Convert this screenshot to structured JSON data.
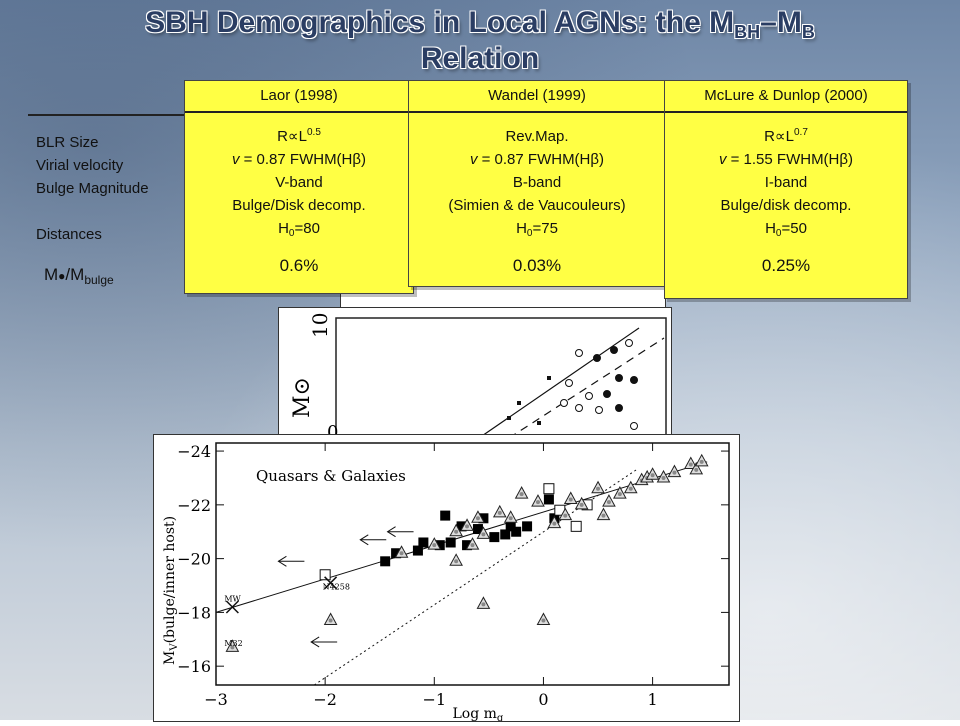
{
  "slide": {
    "title_line1_pre": "SBH Demographics in Local AGNs: the M",
    "title_sub1": "BH",
    "title_dash": "–M",
    "title_sub2": "B",
    "title_line2": "Relation"
  },
  "row_labels": {
    "blr_size": "BLR Size",
    "virial_velocity": "Virial velocity",
    "bulge_magnitude": "Bulge Magnitude",
    "distances": "Distances",
    "ratio_main": "M",
    "ratio_sub": "/M",
    "ratio_sub2": "bulge"
  },
  "columns": [
    {
      "head": "Laor (1998)",
      "blr_main": "R∝L",
      "blr_exp": "0.5",
      "vel_pre": "v",
      "vel_mid": " = 0.87 FWHM(H",
      "vel_beta": "β",
      "vel_post": ")",
      "band": "V-band",
      "note": "Bulge/Disk decomp.",
      "dist_a": "H",
      "dist_sub": "0",
      "dist_b": "=80",
      "pct": "0.6%"
    },
    {
      "head": "Wandel (1999)",
      "blr_main": "Rev.Map.",
      "blr_exp": "",
      "vel_pre": "v",
      "vel_mid": " = 0.87 FWHM(H",
      "vel_beta": "β",
      "vel_post": ")",
      "band": "B-band",
      "note": "(Simien & de Vaucouleurs)",
      "dist_a": "H",
      "dist_sub": "0",
      "dist_b": "=75",
      "pct": "0.03%"
    },
    {
      "head": "McLure & Dunlop (2000)",
      "blr_main": "R∝L",
      "blr_exp": "0.7",
      "vel_pre": "v",
      "vel_mid": " = 1.55 FWHM(H",
      "vel_beta": "β",
      "vel_post": ")",
      "band": "I-band",
      "note": "Bulge/disk decomp.",
      "dist_a": "H",
      "dist_sub": "0",
      "dist_b": "=50",
      "pct": "0.25%"
    }
  ],
  "back_plot": {
    "tick_10": "10",
    "ylabel_frag": "M",
    "ylabel_sun": "⊙",
    "tick_0": "0"
  },
  "chart_data": {
    "type": "scatter",
    "title": "Quasars & Galaxies",
    "xlabel": "Log m",
    "xlabel_sub": "g",
    "ylabel": "M",
    "ylabel_sub": "V",
    "ylabel_rest": "(bulge/inner host)",
    "xlim": [
      -3,
      1.7
    ],
    "ylim": [
      -15.3,
      -24.3
    ],
    "y_inverted": true,
    "x_ticks": [
      -3,
      -2,
      -1,
      0,
      1
    ],
    "x_tick_labels": [
      "−3",
      "−2",
      "−1",
      "0",
      "1"
    ],
    "y_ticks": [
      -24,
      -22,
      -20,
      -18,
      -16
    ],
    "y_tick_labels": [
      "−24",
      "−22",
      "−20",
      "−18",
      "−16"
    ],
    "annotations": [
      {
        "text": "MW",
        "x": -2.85,
        "y": -18.4
      },
      {
        "text": "N4258",
        "x": -1.95,
        "y": -18.85
      },
      {
        "text": "M32",
        "x": -2.85,
        "y": -16.75
      }
    ],
    "lines": [
      {
        "style": "solid",
        "x": [
          -3,
          1.5
        ],
        "y": [
          -18.0,
          -23.6
        ]
      },
      {
        "style": "dotted",
        "x": [
          -2.1,
          0.85
        ],
        "y": [
          -15.3,
          -23.3
        ]
      }
    ],
    "series": [
      {
        "marker": "filled-square",
        "x": [
          -1.35,
          -1.15,
          -1.1,
          -0.95,
          -0.9,
          -0.75,
          -0.7,
          -0.55,
          -0.45,
          -0.35,
          -0.3,
          -0.15,
          0.05,
          -0.85,
          -0.6,
          -1.45,
          -0.25,
          0.1
        ],
        "y": [
          -20.2,
          -20.3,
          -20.6,
          -20.5,
          -21.6,
          -21.2,
          -20.5,
          -21.5,
          -20.8,
          -20.9,
          -21.2,
          -21.2,
          -22.2,
          -20.6,
          -21.1,
          -19.9,
          -21.0,
          -21.5
        ]
      },
      {
        "marker": "open-square",
        "x": [
          -2.0,
          0.05,
          0.15,
          0.3,
          0.4
        ],
        "y": [
          -19.4,
          -22.6,
          -21.8,
          -21.2,
          -22.0
        ]
      },
      {
        "marker": "open-triangle",
        "x": [
          -2.85,
          -1.95,
          -1.3,
          -1.0,
          -0.8,
          -0.7,
          -0.6,
          -0.55,
          -0.4,
          -0.3,
          -0.2,
          -0.05,
          0.0,
          0.1,
          0.2,
          0.25,
          0.35,
          0.5,
          0.55,
          0.6,
          0.7,
          0.8,
          0.9,
          0.95,
          1.0,
          1.1,
          1.2,
          1.35,
          1.4,
          1.45,
          -0.55,
          -0.8,
          -0.65
        ],
        "y": [
          -16.7,
          -17.7,
          -20.2,
          -20.5,
          -19.9,
          -21.2,
          -21.5,
          -18.3,
          -21.7,
          -21.5,
          -22.4,
          -22.1,
          -17.7,
          -21.3,
          -21.6,
          -22.2,
          -22.0,
          -22.6,
          -21.6,
          -22.1,
          -22.4,
          -22.6,
          -22.9,
          -23.0,
          -23.1,
          -23.0,
          -23.2,
          -23.5,
          -23.3,
          -23.6,
          -20.9,
          -21.0,
          -20.5
        ]
      },
      {
        "marker": "cross",
        "x": [
          -2.85,
          -1.95
        ],
        "y": [
          -18.2,
          -19.1
        ]
      },
      {
        "marker": "left-arrow",
        "x": [
          -2.3,
          -1.3,
          -1.55,
          -2.0
        ],
        "y": [
          -19.9,
          -21.0,
          -20.7,
          -16.9
        ]
      }
    ]
  }
}
